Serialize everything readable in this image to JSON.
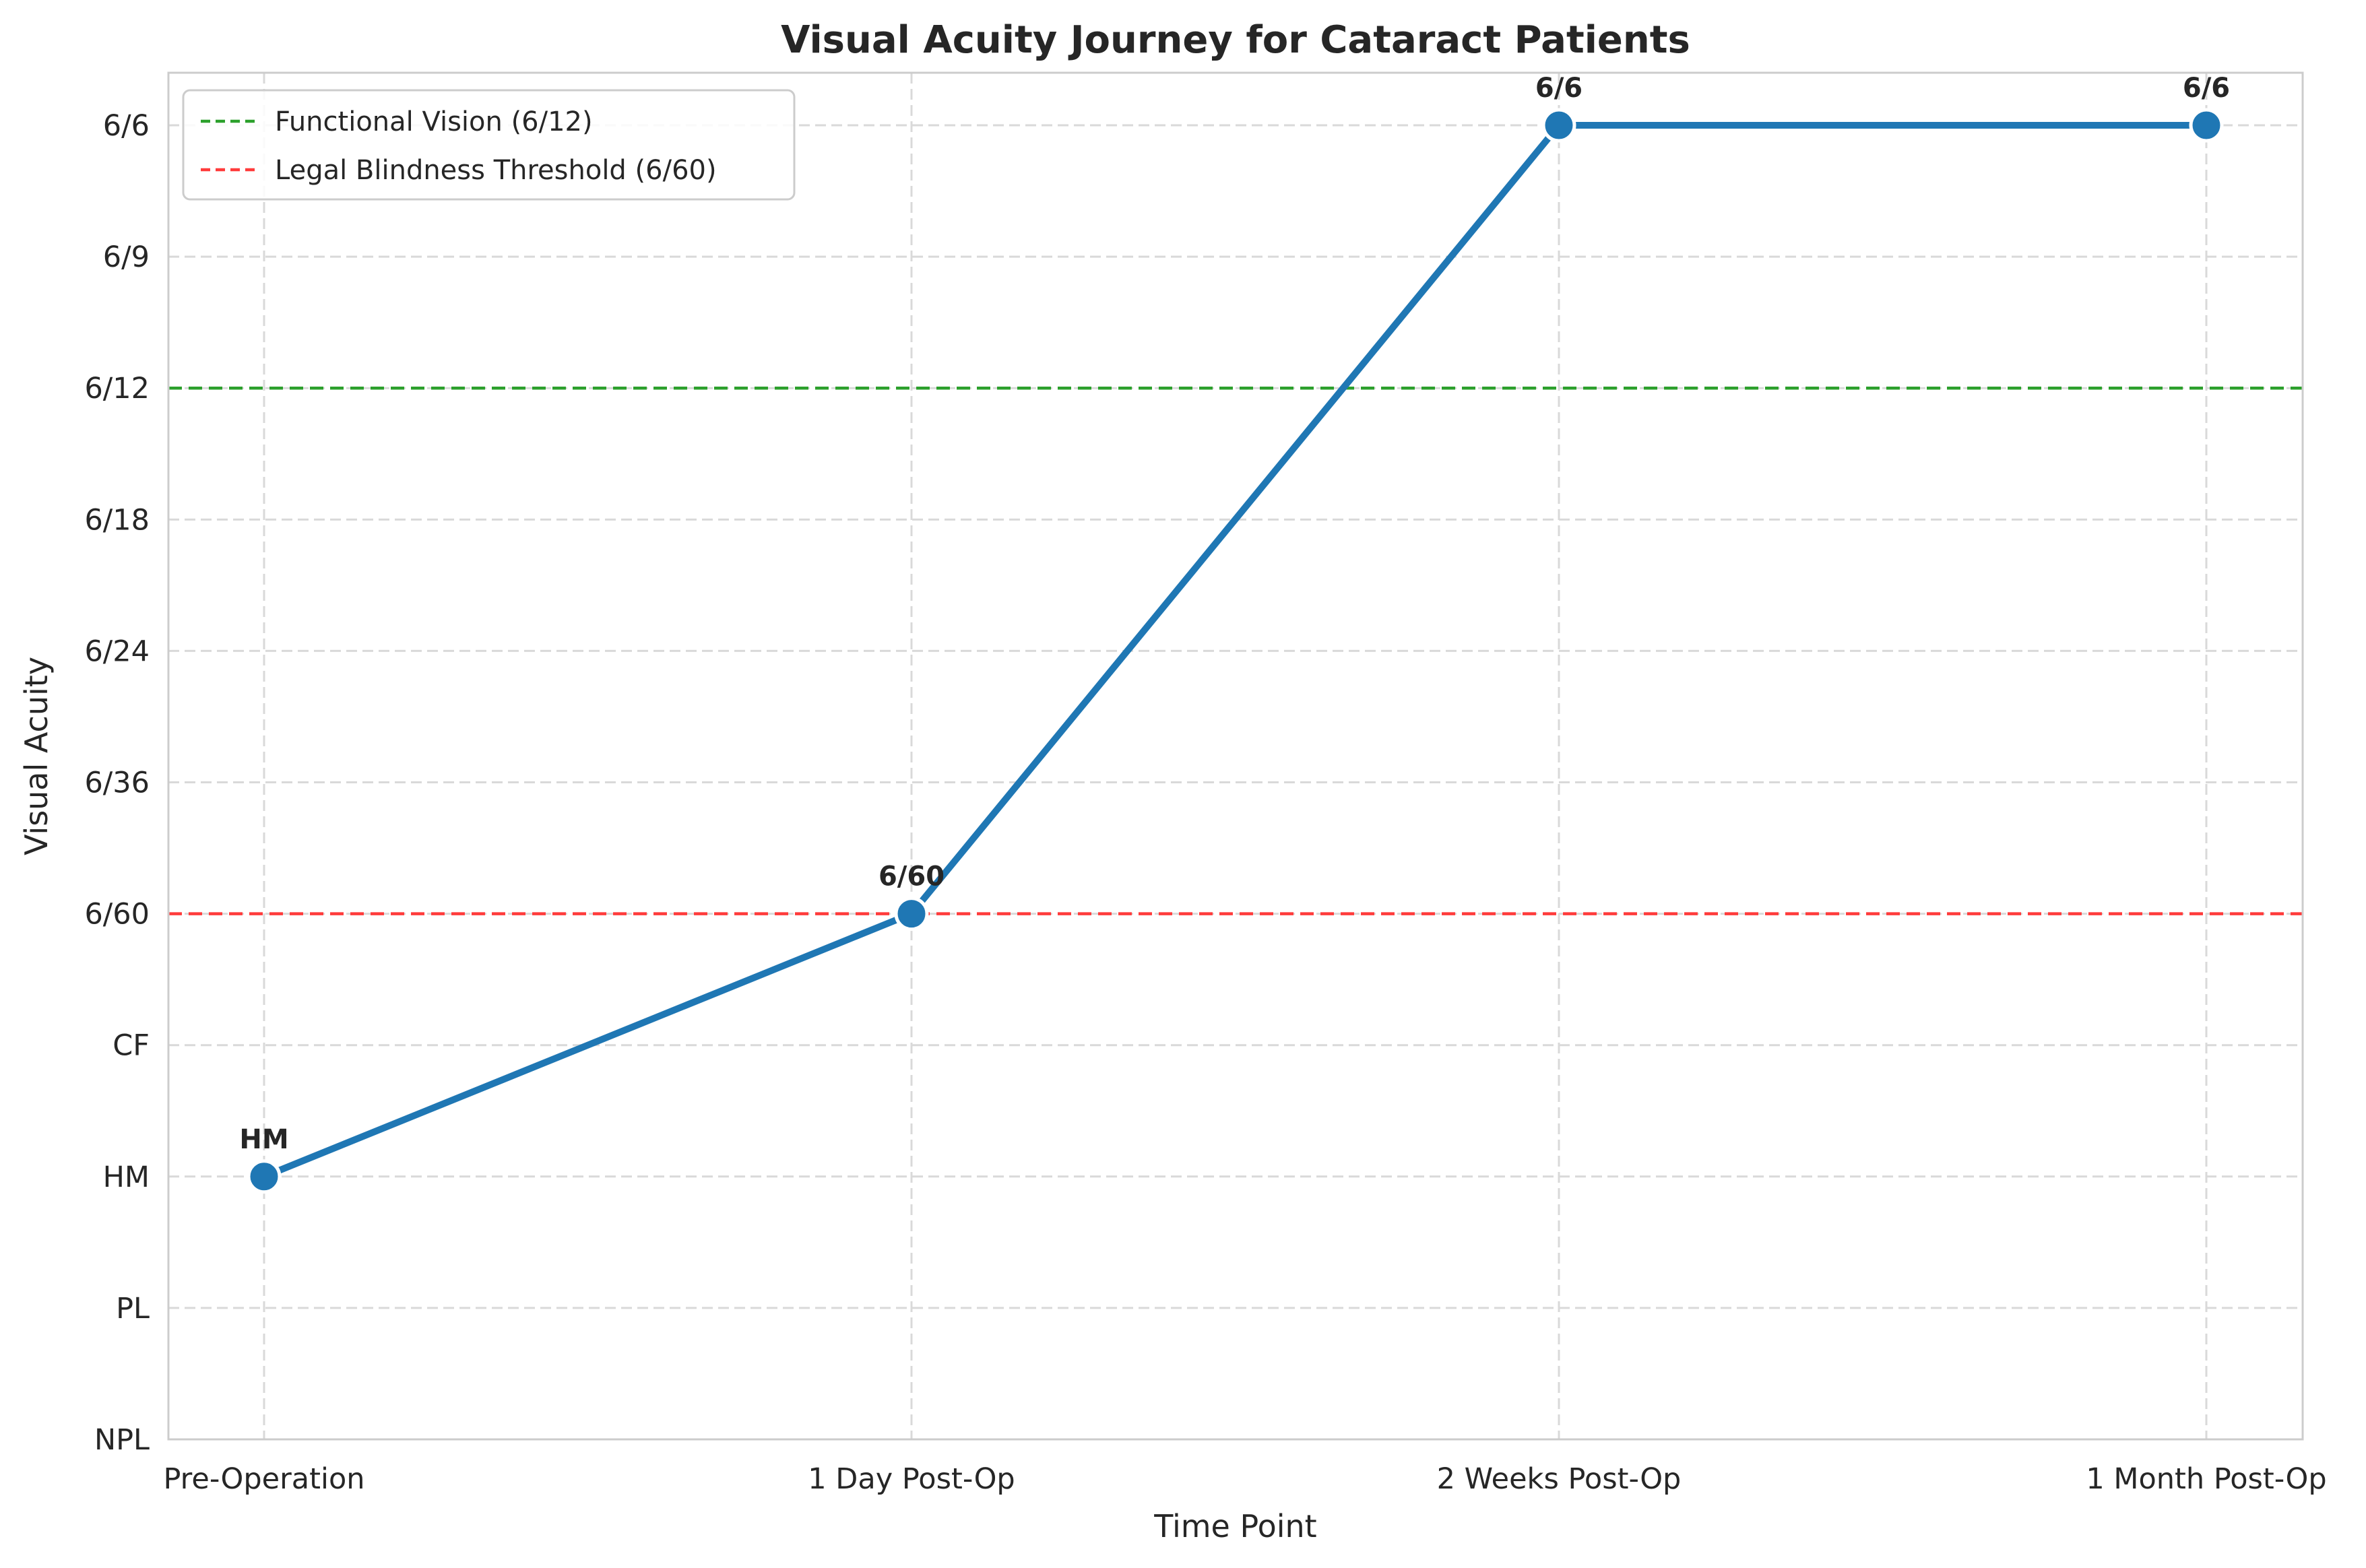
{
  "chart_data": {
    "type": "line",
    "title": "Visual Acuity Journey for Cataract Patients",
    "xlabel": "Time Point",
    "ylabel": "Visual Acuity",
    "categories": [
      "Pre-Operation",
      "1 Day Post-Op",
      "2 Weeks Post-Op",
      "1 Month Post-Op"
    ],
    "y_scale_labels": [
      "NPL",
      "PL",
      "HM",
      "CF",
      "6/60",
      "6/36",
      "6/24",
      "6/18",
      "6/12",
      "6/9",
      "6/6"
    ],
    "series": [
      {
        "values": [
          "HM",
          "6/60",
          "6/6",
          "6/6"
        ],
        "data_labels": [
          "HM",
          "6/60",
          "6/6",
          "6/6"
        ],
        "color": "#1f77b4"
      }
    ],
    "reference_lines": [
      {
        "name": "Functional Vision (6/12)",
        "value": "6/12",
        "color": "#2ca02c",
        "style": "dashed"
      },
      {
        "name": "Legal Blindness Threshold (6/60)",
        "value": "6/60",
        "color": "#ff3b3b",
        "style": "dashed"
      }
    ],
    "grid": true,
    "legend_position": "top-left"
  }
}
